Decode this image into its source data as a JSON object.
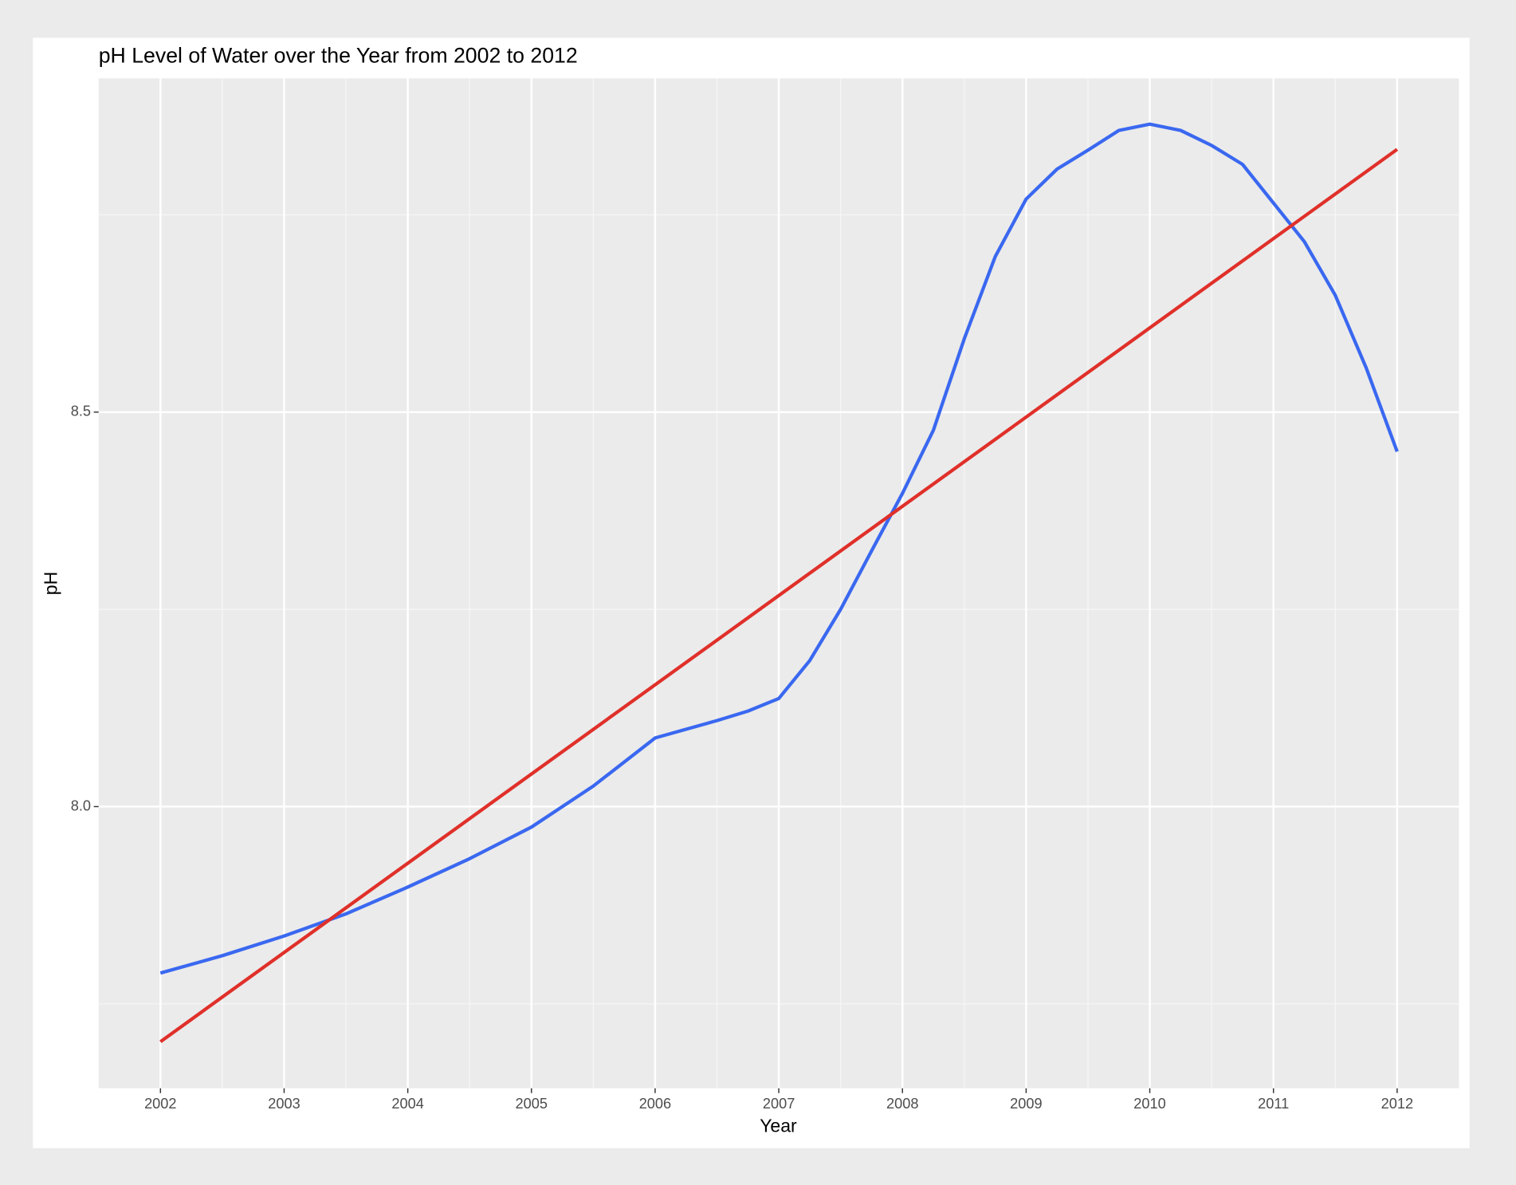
{
  "chart_data": {
    "type": "line",
    "title": "pH Level of Water over the Year from 2002 to 2012",
    "x_label": "Year",
    "y_label": "pH",
    "xlim": [
      2001.5,
      2012.5
    ],
    "ylim": [
      7.643,
      8.923
    ],
    "xticks": [
      2002,
      2003,
      2004,
      2005,
      2006,
      2007,
      2008,
      2009,
      2010,
      2011,
      2012
    ],
    "yticks": [
      {
        "value": 8,
        "label": "8.0"
      },
      8.5
    ],
    "minor_xticks": [
      2002.5,
      2003.5,
      2004.5,
      2005.5,
      2006.5,
      2007.5,
      2008.5,
      2009.5,
      2010.5,
      2011.5
    ],
    "minor_yticks": [
      7.75,
      8.25,
      8.75
    ],
    "grid": true,
    "series": [
      {
        "color": "#3a68f0",
        "x": [
          2002,
          2002.5,
          2003,
          2003.5,
          2004,
          2004.5,
          2005,
          2005.5,
          2006,
          2006.5,
          2006.75,
          2007,
          2007.25,
          2007.5,
          2007.75,
          2008,
          2008.25,
          2008.5,
          2008.75,
          2009,
          2009.25,
          2009.5,
          2009.75,
          2010,
          2010.25,
          2010.5,
          2010.75,
          2011,
          2011.25,
          2011.5,
          2011.75,
          2012
        ],
        "values": [
          7.789,
          7.811,
          7.836,
          7.864,
          7.898,
          7.934,
          7.974,
          8.026,
          8.087,
          8.109,
          8.121,
          8.137,
          8.185,
          8.25,
          8.324,
          8.397,
          8.477,
          8.593,
          8.697,
          8.77,
          8.808,
          8.832,
          8.857,
          8.865,
          8.857,
          8.838,
          8.814,
          8.765,
          8.716,
          8.648,
          8.556,
          8.45
        ]
      },
      {
        "color": "#e0302a",
        "x": [
          2002,
          2012
        ],
        "values": [
          7.702,
          8.833
        ]
      }
    ]
  }
}
